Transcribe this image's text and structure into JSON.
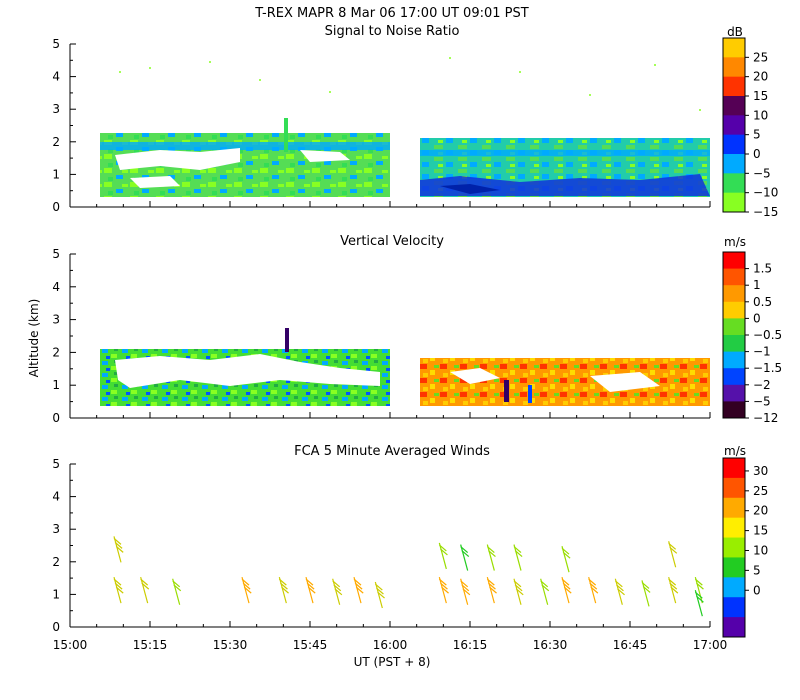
{
  "header": {
    "title": "T-REX   MAPR   8 Mar 06   17:00 UT   09:01   PST"
  },
  "x_axis": {
    "label": "UT  (PST + 8)",
    "ticks": [
      {
        "t": 0,
        "label": "15:00"
      },
      {
        "t": 15,
        "label": "15:15"
      },
      {
        "t": 30,
        "label": "15:30"
      },
      {
        "t": 45,
        "label": "15:45"
      },
      {
        "t": 60,
        "label": "16:00"
      },
      {
        "t": 75,
        "label": "16:15"
      },
      {
        "t": 90,
        "label": "16:30"
      },
      {
        "t": 105,
        "label": "16:45"
      },
      {
        "t": 120,
        "label": "17:00"
      }
    ]
  },
  "y_axis": {
    "label": "Altitude (km)",
    "ticks": [
      0,
      1,
      2,
      3,
      4,
      5
    ]
  },
  "chart_data": [
    {
      "type": "heatmap",
      "title": "Signal to Noise Ratio",
      "xlabel": "UT  (PST + 8)",
      "ylabel": "Altitude (km)",
      "xlim_minutes_after_1500": [
        0,
        120
      ],
      "ylim_km": [
        0,
        5
      ],
      "colorbar": {
        "unit": "dB",
        "labels": [
          "25",
          "20",
          "15",
          "10",
          "5",
          "0",
          "−5",
          "−10",
          "−15"
        ],
        "colors": [
          "#ffcc00",
          "#ff8800",
          "#ff3300",
          "#550055",
          "#5500aa",
          "#0033ff",
          "#00aaff",
          "#33dd55",
          "#88ff22"
        ]
      },
      "segments": [
        {
          "t_start": 7,
          "t_end": 61,
          "top_km": 2.1,
          "bottom_km": 0.35
        },
        {
          "t_start": 67,
          "t_end": 120,
          "top_km": 2.05,
          "bottom_km": 0.35
        }
      ]
    },
    {
      "type": "heatmap",
      "title": "Vertical Velocity",
      "xlabel": "UT  (PST + 8)",
      "ylabel": "Altitude (km)",
      "xlim_minutes_after_1500": [
        0,
        120
      ],
      "ylim_km": [
        0,
        5
      ],
      "colorbar": {
        "unit": "m/s",
        "labels": [
          "1.5",
          "1",
          "0.5",
          "0",
          "−0.5",
          "−1",
          "−1.5",
          "−2",
          "−5",
          "−12"
        ],
        "colors": [
          "#ff0000",
          "#ff5500",
          "#ff9900",
          "#ffcc00",
          "#66dd22",
          "#22cc44",
          "#00aaff",
          "#0044ff",
          "#5511aa",
          "#330022"
        ]
      },
      "segments": [
        {
          "t_start": 7,
          "t_end": 61,
          "top_km": 2.05,
          "bottom_km": 0.35
        },
        {
          "t_start": 67,
          "t_end": 120,
          "top_km": 1.8,
          "bottom_km": 0.35
        }
      ]
    },
    {
      "type": "scatter",
      "title": "FCA 5 Minute Averaged Winds",
      "xlabel": "UT  (PST + 8)",
      "ylabel": "Altitude (km)",
      "xlim_minutes_after_1500": [
        0,
        120
      ],
      "ylim_km": [
        0,
        5
      ],
      "colorbar": {
        "unit": "m/s",
        "labels": [
          "30",
          "25",
          "20",
          "15",
          "10",
          "5",
          "0"
        ],
        "colors": [
          "#ff0000",
          "#ff5500",
          "#ffaa00",
          "#ffee00",
          "#99ee00",
          "#22cc22",
          "#00aaff",
          "#0033ff",
          "#5500aa"
        ]
      },
      "barbs": [
        {
          "t": 9,
          "alt_km": 2.35,
          "speed": 18
        },
        {
          "t": 9,
          "alt_km": 1.1,
          "speed": 18
        },
        {
          "t": 14,
          "alt_km": 1.1,
          "speed": 17
        },
        {
          "t": 20,
          "alt_km": 1.05,
          "speed": 16
        },
        {
          "t": 33,
          "alt_km": 1.1,
          "speed": 22
        },
        {
          "t": 40,
          "alt_km": 1.1,
          "speed": 19
        },
        {
          "t": 45,
          "alt_km": 1.1,
          "speed": 20
        },
        {
          "t": 50,
          "alt_km": 1.05,
          "speed": 18
        },
        {
          "t": 54,
          "alt_km": 1.1,
          "speed": 21
        },
        {
          "t": 58,
          "alt_km": 0.95,
          "speed": 19
        },
        {
          "t": 70,
          "alt_km": 2.15,
          "speed": 14
        },
        {
          "t": 70,
          "alt_km": 1.1,
          "speed": 24
        },
        {
          "t": 74,
          "alt_km": 2.1,
          "speed": 13
        },
        {
          "t": 74,
          "alt_km": 1.05,
          "speed": 22
        },
        {
          "t": 79,
          "alt_km": 2.1,
          "speed": 14
        },
        {
          "t": 79,
          "alt_km": 1.1,
          "speed": 20
        },
        {
          "t": 84,
          "alt_km": 2.1,
          "speed": 14
        },
        {
          "t": 84,
          "alt_km": 1.05,
          "speed": 19
        },
        {
          "t": 89,
          "alt_km": 1.05,
          "speed": 16
        },
        {
          "t": 93,
          "alt_km": 2.05,
          "speed": 15
        },
        {
          "t": 93,
          "alt_km": 1.1,
          "speed": 20
        },
        {
          "t": 98,
          "alt_km": 1.1,
          "speed": 24
        },
        {
          "t": 103,
          "alt_km": 1.05,
          "speed": 18
        },
        {
          "t": 108,
          "alt_km": 1.0,
          "speed": 16
        },
        {
          "t": 113,
          "alt_km": 2.2,
          "speed": 17
        },
        {
          "t": 113,
          "alt_km": 1.1,
          "speed": 18
        },
        {
          "t": 118,
          "alt_km": 1.1,
          "speed": 15
        },
        {
          "t": 118,
          "alt_km": 0.7,
          "speed": 13
        }
      ]
    }
  ]
}
